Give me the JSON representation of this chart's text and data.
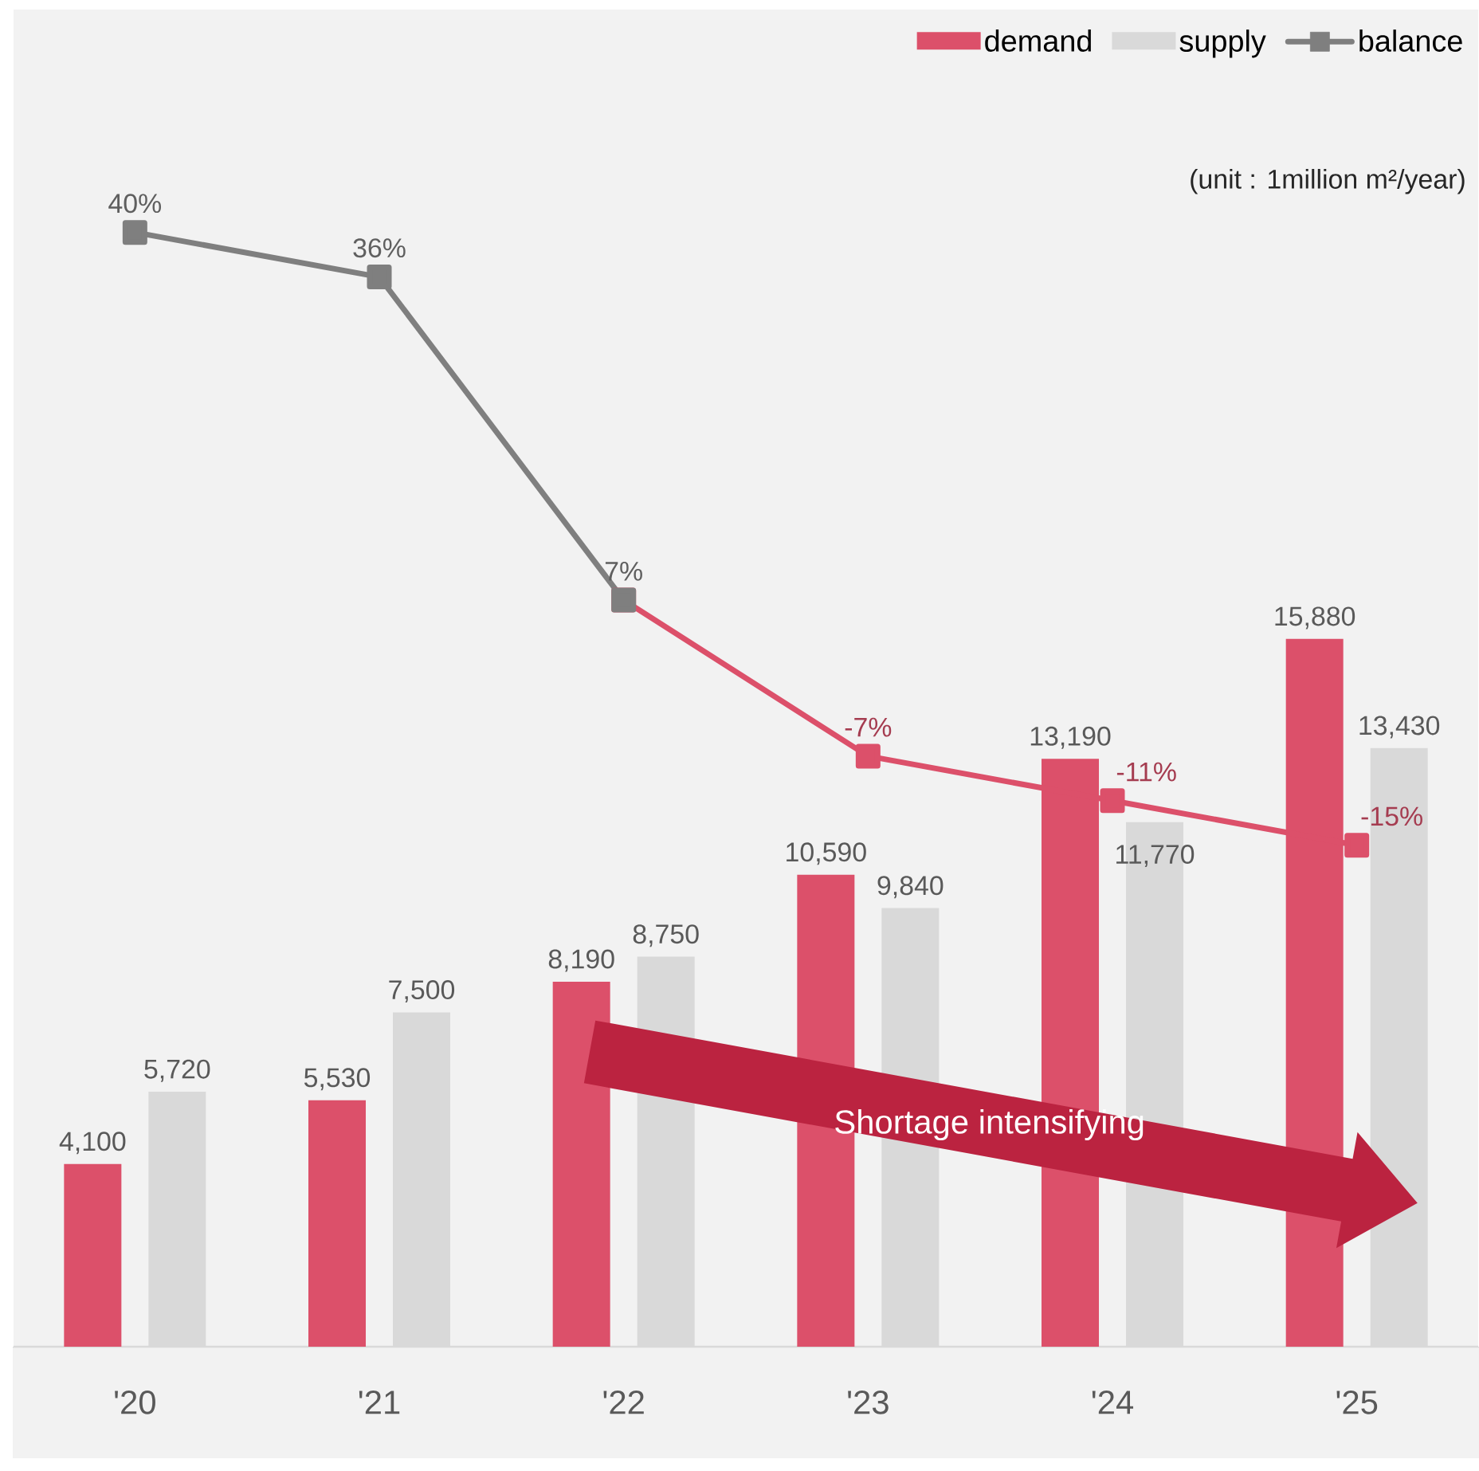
{
  "chart_data": {
    "type": "bar",
    "categories": [
      "'20",
      "'21",
      "'22",
      "'23",
      "'24",
      "'25"
    ],
    "series": [
      {
        "name": "demand",
        "color": "#dc506a",
        "values": [
          4100,
          5530,
          8190,
          10590,
          13190,
          15880
        ],
        "value_labels": [
          "4,100",
          "5,530",
          "8,190",
          "10,590",
          "13,190",
          "15,880"
        ]
      },
      {
        "name": "supply",
        "color": "#d9d9d9",
        "values": [
          5720,
          7500,
          8750,
          9840,
          11770,
          13430
        ],
        "value_labels": [
          "5,720",
          "7,500",
          "8,750",
          "9,840",
          "11,770",
          "13,430"
        ]
      },
      {
        "name": "balance",
        "type": "line",
        "axis": "y2",
        "color": "#7f7f7f",
        "values": [
          40,
          36,
          7,
          null,
          null,
          null
        ],
        "value_labels": [
          "40%",
          "36%",
          "7%",
          null,
          null,
          null
        ]
      },
      {
        "type": "line",
        "axis": "y2",
        "color": "#dc506a",
        "values": [
          null,
          null,
          7,
          -7,
          -11,
          -15
        ],
        "value_labels": [
          null,
          null,
          null,
          "-7%",
          "-11%",
          "-15%"
        ]
      }
    ],
    "ylim": [
      0,
      30000
    ],
    "y2lim": [
      -60,
      60
    ],
    "tick_labels": "x",
    "legend": "top right",
    "marker": "square",
    "annotations": [
      "(unit : 1million m²/year)",
      "Shortage intensifying"
    ]
  }
}
